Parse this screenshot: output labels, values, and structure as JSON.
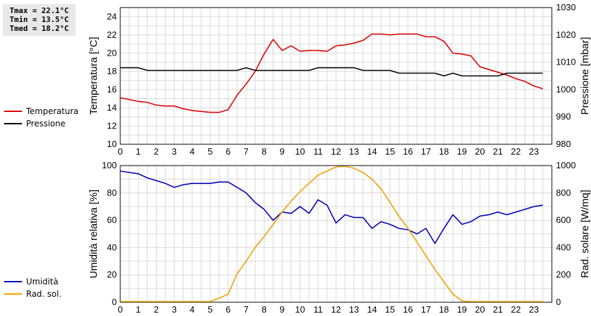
{
  "stats": {
    "tmax": "Tmax = 22.1°C",
    "tmin": "Tmin = 13.5°C",
    "tmed": "Tmed = 18.2°C"
  },
  "colors": {
    "temperature": "#dd0000",
    "pressure": "#000000",
    "humidity": "#0000bb",
    "solar": "#f0a000",
    "grid": "#d8d8d8"
  },
  "chart_data": [
    {
      "type": "line",
      "x_ticks": [
        "0",
        "1",
        "2",
        "3",
        "4",
        "5",
        "6",
        "7",
        "8",
        "9",
        "10",
        "11",
        "12",
        "13",
        "14",
        "15",
        "16",
        "17",
        "18",
        "19",
        "20",
        "21",
        "22",
        "23"
      ],
      "xlim": [
        0,
        24
      ],
      "y_left": {
        "label": "Temperatura [°C]",
        "lim": [
          10,
          25
        ],
        "ticks": [
          "10",
          "12",
          "14",
          "16",
          "18",
          "20",
          "22",
          "24"
        ]
      },
      "y_right": {
        "label": "Pressione [mbar]",
        "lim": [
          980,
          1030
        ],
        "ticks": [
          "980",
          "990",
          "1000",
          "1010",
          "1020",
          "1030"
        ]
      },
      "legend": "left",
      "grid": true,
      "series": [
        {
          "name": "Temperatura",
          "axis": "left",
          "color": "#dd0000",
          "x": [
            0,
            0.5,
            1,
            1.5,
            2,
            2.5,
            3,
            3.5,
            4,
            4.5,
            5,
            5.5,
            6,
            6.5,
            7,
            7.5,
            8,
            8.5,
            9,
            9.5,
            10,
            10.5,
            11,
            11.5,
            12,
            12.5,
            13,
            13.5,
            14,
            14.5,
            15,
            15.5,
            16,
            16.5,
            17,
            17.5,
            18,
            18.5,
            19,
            19.5,
            20,
            20.5,
            21,
            21.5,
            22,
            22.5,
            23,
            23.5
          ],
          "y": [
            15.1,
            14.9,
            14.7,
            14.6,
            14.3,
            14.2,
            14.2,
            13.9,
            13.7,
            13.6,
            13.5,
            13.5,
            13.8,
            15.4,
            16.6,
            18.0,
            19.9,
            21.5,
            20.3,
            20.8,
            20.2,
            20.3,
            20.3,
            20.2,
            20.8,
            20.9,
            21.1,
            21.4,
            22.1,
            22.1,
            22.0,
            22.1,
            22.1,
            22.1,
            21.8,
            21.8,
            21.3,
            20.0,
            19.9,
            19.7,
            18.5,
            18.2,
            17.9,
            17.6,
            17.2,
            16.9,
            16.4,
            16.1
          ]
        },
        {
          "name": "Pressione",
          "axis": "right",
          "color": "#000000",
          "x": [
            0,
            0.5,
            1,
            1.5,
            2,
            2.5,
            3,
            3.5,
            4,
            4.5,
            5,
            5.5,
            6,
            6.5,
            7,
            7.5,
            8,
            8.5,
            9,
            9.5,
            10,
            10.5,
            11,
            11.5,
            12,
            12.5,
            13,
            13.5,
            14,
            14.5,
            15,
            15.5,
            16,
            16.5,
            17,
            17.5,
            18,
            18.5,
            19,
            19.5,
            20,
            20.5,
            21,
            21.5,
            22,
            22.5,
            23,
            23.5
          ],
          "y": [
            1008,
            1008,
            1008,
            1007,
            1007,
            1007,
            1007,
            1007,
            1007,
            1007,
            1007,
            1007,
            1007,
            1007,
            1008,
            1007,
            1007,
            1007,
            1007,
            1007,
            1007,
            1007,
            1008,
            1008,
            1008,
            1008,
            1008,
            1007,
            1007,
            1007,
            1007,
            1006,
            1006,
            1006,
            1006,
            1006,
            1005,
            1006,
            1005,
            1005,
            1005,
            1005,
            1005,
            1006,
            1006,
            1006,
            1006,
            1006
          ]
        }
      ]
    },
    {
      "type": "line",
      "x_ticks": [
        "0",
        "1",
        "2",
        "3",
        "4",
        "5",
        "6",
        "7",
        "8",
        "9",
        "10",
        "11",
        "12",
        "13",
        "14",
        "15",
        "16",
        "17",
        "18",
        "19",
        "20",
        "21",
        "22",
        "23"
      ],
      "xlim": [
        0,
        24
      ],
      "y_left": {
        "label": "Umidità relativa [%]",
        "lim": [
          0,
          100
        ],
        "ticks": [
          "0",
          "20",
          "40",
          "60",
          "80",
          "100"
        ]
      },
      "y_right": {
        "label": "Rad. solare [W/mq]",
        "lim": [
          0,
          1000
        ],
        "ticks": [
          "0",
          "200",
          "400",
          "600",
          "800",
          "1000"
        ]
      },
      "legend": "left",
      "grid": true,
      "series": [
        {
          "name": "Umidità",
          "axis": "left",
          "color": "#0000bb",
          "x": [
            0,
            0.5,
            1,
            1.5,
            2,
            2.5,
            3,
            3.5,
            4,
            4.5,
            5,
            5.5,
            6,
            6.5,
            7,
            7.5,
            8,
            8.5,
            9,
            9.5,
            10,
            10.5,
            11,
            11.5,
            12,
            12.5,
            13,
            13.5,
            14,
            14.5,
            15,
            15.5,
            16,
            16.5,
            17,
            17.5,
            18,
            18.5,
            19,
            19.5,
            20,
            20.5,
            21,
            21.5,
            22,
            22.5,
            23,
            23.5
          ],
          "y": [
            96,
            95,
            94,
            91,
            89,
            87,
            84,
            86,
            87,
            87,
            87,
            88,
            88,
            84,
            80,
            73,
            68,
            60,
            66,
            65,
            70,
            65,
            75,
            71,
            58,
            64,
            62,
            62,
            54,
            59,
            57,
            54,
            53,
            50,
            54,
            43,
            54,
            64,
            57,
            59,
            63,
            64,
            66,
            64,
            66,
            68,
            70,
            71
          ]
        },
        {
          "name": "Rad. sol.",
          "axis": "right",
          "color": "#f0a000",
          "x": [
            0,
            0.5,
            1,
            1.5,
            2,
            2.5,
            3,
            3.5,
            4,
            4.5,
            5,
            5.5,
            6,
            6.5,
            7,
            7.5,
            8,
            8.5,
            9,
            9.5,
            10,
            10.5,
            11,
            11.5,
            12,
            12.5,
            13,
            13.5,
            14,
            14.5,
            15,
            15.5,
            16,
            16.5,
            17,
            17.5,
            18,
            18.5,
            19,
            19.5,
            20,
            20.5,
            21,
            21.5,
            22,
            22.5,
            23,
            23.5
          ],
          "y": [
            5,
            5,
            5,
            5,
            5,
            5,
            5,
            5,
            5,
            5,
            5,
            30,
            60,
            210,
            300,
            400,
            480,
            570,
            660,
            740,
            810,
            870,
            930,
            960,
            990,
            995,
            980,
            950,
            900,
            830,
            730,
            630,
            540,
            440,
            340,
            240,
            150,
            60,
            10,
            5,
            5,
            5,
            5,
            5,
            5,
            5,
            5,
            5
          ]
        }
      ]
    }
  ]
}
